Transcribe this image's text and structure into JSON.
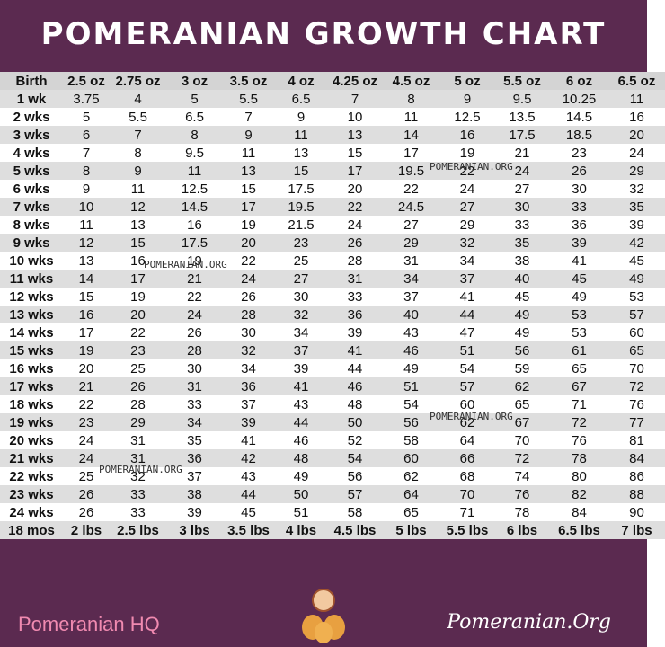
{
  "header": {
    "title": "POMERANIAN GROWTH CHART"
  },
  "table": {
    "columns": [
      "Birth",
      "2.5 oz",
      "2.75 oz",
      "3 oz",
      "3.5 oz",
      "4 oz",
      "4.25 oz",
      "4.5 oz",
      "5 oz",
      "5.5 oz",
      "6 oz",
      "6.5 oz"
    ],
    "rows": [
      [
        "1 wk",
        "3.75",
        "4",
        "5",
        "5.5",
        "6.5",
        "7",
        "8",
        "9",
        "9.5",
        "10.25",
        "11"
      ],
      [
        "2 wks",
        "5",
        "5.5",
        "6.5",
        "7",
        "9",
        "10",
        "11",
        "12.5",
        "13.5",
        "14.5",
        "16"
      ],
      [
        "3 wks",
        "6",
        "7",
        "8",
        "9",
        "11",
        "13",
        "14",
        "16",
        "17.5",
        "18.5",
        "20"
      ],
      [
        "4 wks",
        "7",
        "8",
        "9.5",
        "11",
        "13",
        "15",
        "17",
        "19",
        "21",
        "23",
        "24"
      ],
      [
        "5 wks",
        "8",
        "9",
        "11",
        "13",
        "15",
        "17",
        "19.5",
        "22",
        "24",
        "26",
        "29"
      ],
      [
        "6 wks",
        "9",
        "11",
        "12.5",
        "15",
        "17.5",
        "20",
        "22",
        "24",
        "27",
        "30",
        "32"
      ],
      [
        "7 wks",
        "10",
        "12",
        "14.5",
        "17",
        "19.5",
        "22",
        "24.5",
        "27",
        "30",
        "33",
        "35"
      ],
      [
        "8 wks",
        "11",
        "13",
        "16",
        "19",
        "21.5",
        "24",
        "27",
        "29",
        "33",
        "36",
        "39"
      ],
      [
        "9 wks",
        "12",
        "15",
        "17.5",
        "20",
        "23",
        "26",
        "29",
        "32",
        "35",
        "39",
        "42"
      ],
      [
        "10 wks",
        "13",
        "16",
        "19",
        "22",
        "25",
        "28",
        "31",
        "34",
        "38",
        "41",
        "45"
      ],
      [
        "11 wks",
        "14",
        "17",
        "21",
        "24",
        "27",
        "31",
        "34",
        "37",
        "40",
        "45",
        "49"
      ],
      [
        "12 wks",
        "15",
        "19",
        "22",
        "26",
        "30",
        "33",
        "37",
        "41",
        "45",
        "49",
        "53"
      ],
      [
        "13 wks",
        "16",
        "20",
        "24",
        "28",
        "32",
        "36",
        "40",
        "44",
        "49",
        "53",
        "57"
      ],
      [
        "14 wks",
        "17",
        "22",
        "26",
        "30",
        "34",
        "39",
        "43",
        "47",
        "49",
        "53",
        "60"
      ],
      [
        "15 wks",
        "19",
        "23",
        "28",
        "32",
        "37",
        "41",
        "46",
        "51",
        "56",
        "61",
        "65"
      ],
      [
        "16 wks",
        "20",
        "25",
        "30",
        "34",
        "39",
        "44",
        "49",
        "54",
        "59",
        "65",
        "70"
      ],
      [
        "17 wks",
        "21",
        "26",
        "31",
        "36",
        "41",
        "46",
        "51",
        "57",
        "62",
        "67",
        "72"
      ],
      [
        "18 wks",
        "22",
        "28",
        "33",
        "37",
        "43",
        "48",
        "54",
        "60",
        "65",
        "71",
        "76"
      ],
      [
        "19 wks",
        "23",
        "29",
        "34",
        "39",
        "44",
        "50",
        "56",
        "62",
        "67",
        "72",
        "77"
      ],
      [
        "20 wks",
        "24",
        "31",
        "35",
        "41",
        "46",
        "52",
        "58",
        "64",
        "70",
        "76",
        "81"
      ],
      [
        "21 wks",
        "24",
        "31",
        "36",
        "42",
        "48",
        "54",
        "60",
        "66",
        "72",
        "78",
        "84"
      ],
      [
        "22 wks",
        "25",
        "32",
        "37",
        "43",
        "49",
        "56",
        "62",
        "68",
        "74",
        "80",
        "86"
      ],
      [
        "23 wks",
        "26",
        "33",
        "38",
        "44",
        "50",
        "57",
        "64",
        "70",
        "76",
        "82",
        "88"
      ],
      [
        "24 wks",
        "26",
        "33",
        "39",
        "45",
        "51",
        "58",
        "65",
        "71",
        "78",
        "84",
        "90"
      ],
      [
        "18 mos",
        "2 lbs",
        "2.5 lbs",
        "3 lbs",
        "3.5 lbs",
        "4 lbs",
        "4.5 lbs",
        "5 lbs",
        "5.5 lbs",
        "6 lbs",
        "6.5 lbs",
        "7 lbs"
      ]
    ]
  },
  "watermarks": [
    "POMERANIAN.ORG",
    "POMERANIAN.ORG",
    "POMERANIAN.ORG",
    "POMERANIAN.ORG"
  ],
  "footer": {
    "left": "Pomeranian HQ",
    "right": "Pomeranian.Org"
  }
}
